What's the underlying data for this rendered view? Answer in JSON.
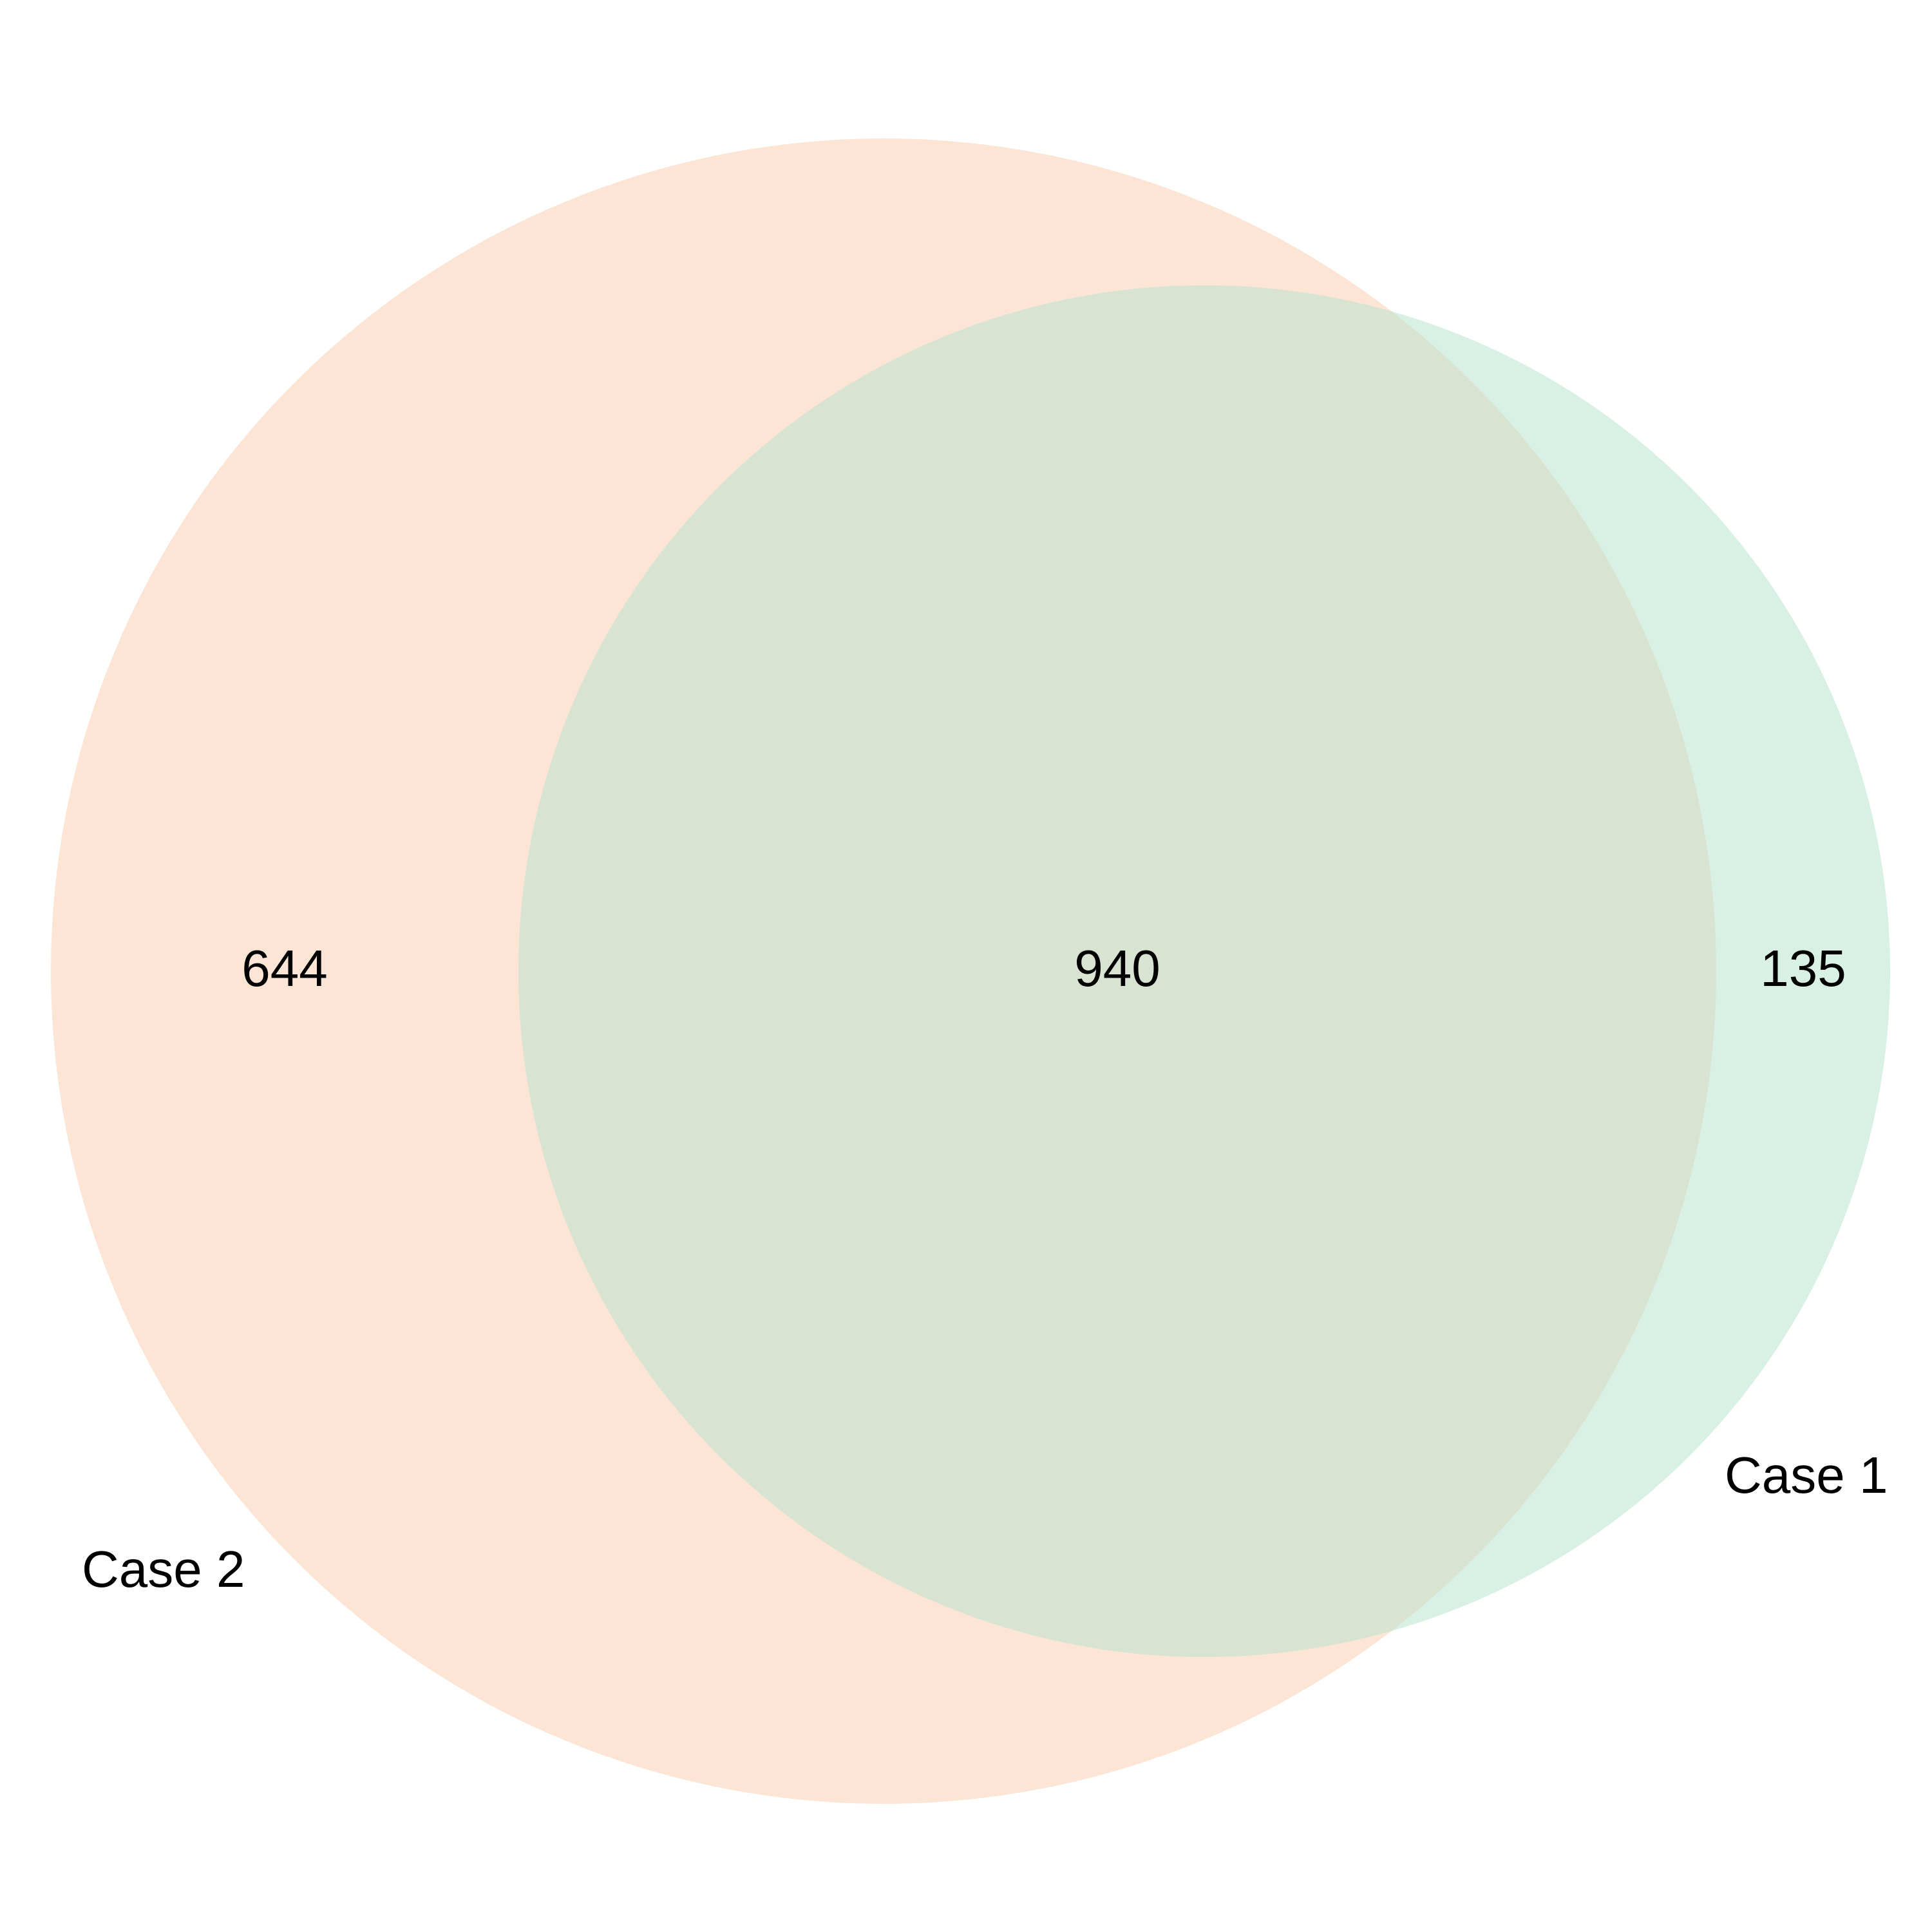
{
  "diagram": {
    "type": "venn",
    "sets": [
      {
        "name": "Case 2",
        "label": "Case 2",
        "only_count": "644",
        "color": "#fce5d5"
      },
      {
        "name": "Case 1",
        "label": "Case 1",
        "only_count": "135",
        "color": "#d9f0e5"
      }
    ],
    "intersection": {
      "count": "940",
      "color": "#d9e3d2"
    }
  }
}
